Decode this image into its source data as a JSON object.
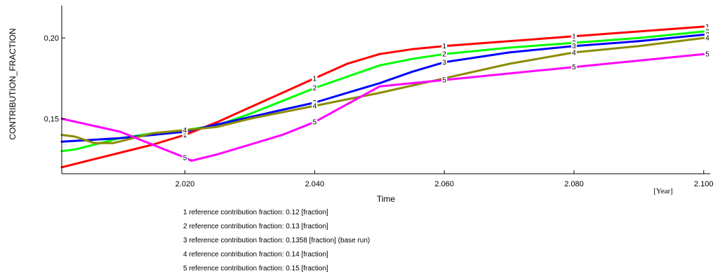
{
  "chart_data": {
    "type": "line",
    "xlabel": "Time",
    "xunit": "[Year]",
    "ylabel": "CONTRIBUTION_FRACTION",
    "xlim": [
      2001,
      2101
    ],
    "ylim": [
      0.116,
      0.22
    ],
    "xticks": [
      2020,
      2040,
      2060,
      2080,
      2100
    ],
    "xtick_labels": [
      "2.020",
      "2.040",
      "2.060",
      "2.080",
      "2.100"
    ],
    "yticks": [
      0.15,
      0.2
    ],
    "ytick_labels": [
      "0,15",
      "0,20"
    ],
    "grid": false,
    "legend": "bottom",
    "label_x": [
      2020,
      2040,
      2060,
      2080,
      2100
    ],
    "series": [
      {
        "label": "1",
        "legend": "1 reference contribution fraction: 0.12 [fraction]",
        "color": "#ff0000",
        "x": [
          2001,
          2005,
          2010,
          2015,
          2020,
          2025,
          2030,
          2035,
          2040,
          2045,
          2050,
          2055,
          2060,
          2070,
          2080,
          2090,
          2100
        ],
        "y": [
          0.12,
          0.124,
          0.129,
          0.134,
          0.14,
          0.148,
          0.157,
          0.166,
          0.175,
          0.184,
          0.19,
          0.193,
          0.195,
          0.198,
          0.201,
          0.204,
          0.207
        ]
      },
      {
        "label": "2",
        "legend": "2 reference contribution fraction: 0.13 [fraction]",
        "color": "#00ff00",
        "x": [
          2001,
          2003,
          2006,
          2010,
          2015,
          2020,
          2025,
          2030,
          2035,
          2040,
          2045,
          2050,
          2055,
          2060,
          2070,
          2080,
          2090,
          2100
        ],
        "y": [
          0.13,
          0.131,
          0.134,
          0.138,
          0.141,
          0.143,
          0.146,
          0.153,
          0.161,
          0.169,
          0.176,
          0.183,
          0.187,
          0.19,
          0.194,
          0.197,
          0.2,
          0.204
        ]
      },
      {
        "label": "3",
        "legend": "3 reference contribution fraction: 0.1358 [fraction] (base run)",
        "color": "#0000ff",
        "x": [
          2001,
          2010,
          2020,
          2030,
          2040,
          2045,
          2050,
          2055,
          2060,
          2070,
          2080,
          2090,
          2100
        ],
        "y": [
          0.1358,
          0.138,
          0.142,
          0.151,
          0.16,
          0.166,
          0.172,
          0.179,
          0.185,
          0.191,
          0.195,
          0.198,
          0.202
        ]
      },
      {
        "label": "4",
        "legend": "4 reference contribution fraction: 0.14 [fraction]",
        "color": "#8b8b00",
        "x": [
          2001,
          2003,
          2006,
          2009,
          2012,
          2015,
          2020,
          2025,
          2030,
          2040,
          2050,
          2060,
          2070,
          2080,
          2090,
          2100
        ],
        "y": [
          0.14,
          0.139,
          0.135,
          0.135,
          0.138,
          0.141,
          0.143,
          0.145,
          0.15,
          0.158,
          0.166,
          0.175,
          0.184,
          0.191,
          0.195,
          0.2
        ]
      },
      {
        "label": "5",
        "legend": "5 reference contribution fraction: 0.15 [fraction]",
        "color": "#ff00ff",
        "x": [
          2001,
          2010,
          2020,
          2021,
          2025,
          2030,
          2035,
          2040,
          2045,
          2050,
          2055,
          2060,
          2070,
          2080,
          2090,
          2100
        ],
        "y": [
          0.15,
          0.142,
          0.126,
          0.124,
          0.128,
          0.134,
          0.14,
          0.148,
          0.159,
          0.17,
          0.172,
          0.174,
          0.178,
          0.182,
          0.186,
          0.19
        ]
      }
    ]
  }
}
